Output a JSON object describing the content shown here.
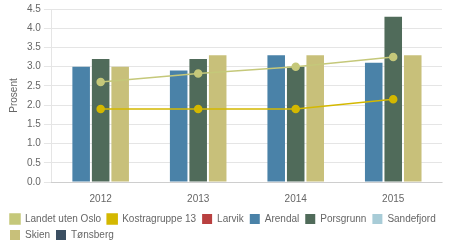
{
  "chart_data": {
    "type": "bar",
    "categories": [
      "2012",
      "2013",
      "2014",
      "2015"
    ],
    "series": [
      {
        "name": "Larvik",
        "color": "#b94040",
        "values": [
          null,
          null,
          null,
          null
        ]
      },
      {
        "name": "Arendal",
        "color": "#4a82a8",
        "values": [
          3.0,
          2.9,
          3.3,
          3.1
        ]
      },
      {
        "name": "Porsgrunn",
        "color": "#506b5a",
        "values": [
          3.2,
          3.2,
          3.0,
          4.3
        ]
      },
      {
        "name": "Sandefjord",
        "color": "#a8ccd7",
        "values": [
          null,
          null,
          null,
          null
        ]
      },
      {
        "name": "Skien",
        "color": "#c8c07a",
        "values": [
          3.0,
          3.3,
          3.3,
          3.3
        ]
      },
      {
        "name": "Tønsberg",
        "color": "#3b4f62",
        "values": [
          null,
          null,
          null,
          null
        ]
      },
      {
        "name": "Landet uten Oslo",
        "type": "line",
        "marker": "circle",
        "color": "#c5c87a",
        "values": [
          2.6,
          2.82,
          3.0,
          3.25
        ]
      },
      {
        "name": "Kostragruppe 13",
        "type": "line",
        "marker": "circle",
        "color": "#d4b800",
        "values": [
          1.9,
          1.9,
          1.9,
          2.15
        ]
      }
    ],
    "ylabel": "Prosent",
    "ylim": [
      0,
      4.5
    ],
    "yticks": [
      {
        "value": 0,
        "label": "0.0"
      },
      0.5,
      {
        "value": 1,
        "label": "1.0"
      },
      1.5,
      {
        "value": 2,
        "label": "2.0"
      },
      2.5,
      {
        "value": 3,
        "label": "3.0"
      },
      3.5,
      {
        "value": 4,
        "label": "4.0"
      },
      4.5
    ],
    "grid": true,
    "legend": "bottom"
  }
}
